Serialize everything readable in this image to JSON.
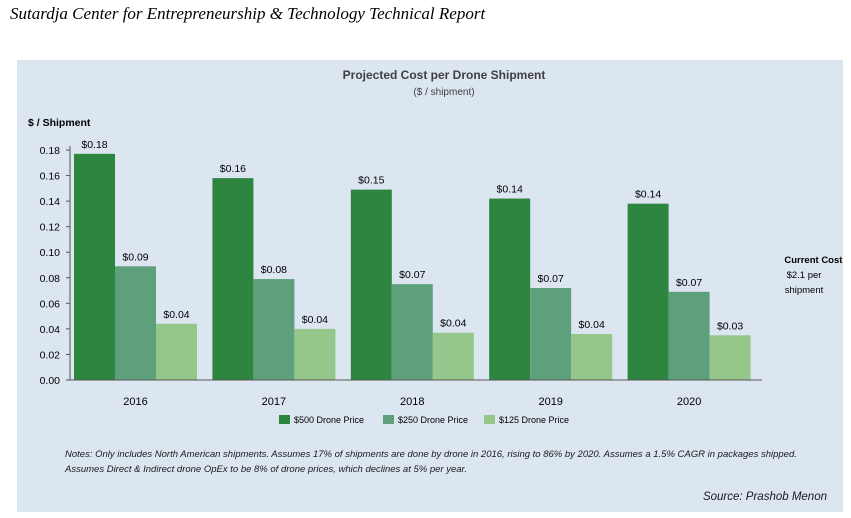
{
  "report": {
    "title": "Sutardja Center for Entrepreneurship & Technology Technical Report"
  },
  "notes": "Notes: Only includes North American shipments. Assumes 17% of shipments are done by drone in 2016, rising to 86% by 2020. Assumes a 1.5% CAGR in packages shipped. Assumes Direct & Indirect drone OpEx to be 8% of drone prices, which declines at 5% per year.",
  "source": "Source: Prashob Menon",
  "current_cost": {
    "heading": "Current Cost:",
    "line1": "$2.1 per",
    "line2": "shipment"
  },
  "chart_data": {
    "type": "bar",
    "title": "Projected Cost per Drone Shipment",
    "subtitle": "($ / shipment)",
    "ylabel": "$ / Shipment",
    "xlabel": "",
    "ylim": [
      0,
      0.18
    ],
    "yticks": [
      "0.00",
      "0.02",
      "0.04",
      "0.06",
      "0.08",
      "0.10",
      "0.12",
      "0.14",
      "0.16",
      "0.18"
    ],
    "grid": false,
    "legend_position": "bottom",
    "categories": [
      "2016",
      "2017",
      "2018",
      "2019",
      "2020"
    ],
    "series": [
      {
        "name": "$500 Drone Price",
        "color": "#2e8540",
        "values": [
          0.177,
          0.158,
          0.149,
          0.142,
          0.138
        ],
        "labels": [
          "$0.18",
          "$0.16",
          "$0.15",
          "$0.14",
          "$0.14"
        ]
      },
      {
        "name": "$250 Drone Price",
        "color": "#5fa07c",
        "values": [
          0.089,
          0.079,
          0.075,
          0.072,
          0.069
        ],
        "labels": [
          "$0.09",
          "$0.08",
          "$0.07",
          "$0.07",
          "$0.07"
        ]
      },
      {
        "name": "$125 Drone Price",
        "color": "#95c68a",
        "values": [
          0.044,
          0.04,
          0.037,
          0.036,
          0.035
        ],
        "labels": [
          "$0.04",
          "$0.04",
          "$0.04",
          "$0.04",
          "$0.03"
        ]
      }
    ]
  }
}
